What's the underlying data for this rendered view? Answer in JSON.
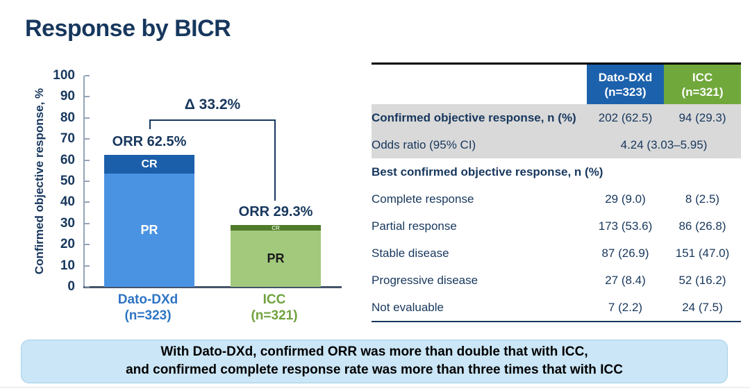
{
  "title": "Response by BICR",
  "chart_data": {
    "type": "bar",
    "stacked": true,
    "title": "",
    "xlabel": "",
    "ylabel": "Confirmed objective response, %",
    "ylim": [
      0,
      100
    ],
    "yticks": [
      0,
      10,
      20,
      30,
      40,
      50,
      60,
      70,
      80,
      90,
      100
    ],
    "grid": false,
    "legend_position": "none",
    "segment_labels": {
      "cr": "CR",
      "pr": "PR"
    },
    "delta_label": "Δ 33.2%",
    "categories": [
      {
        "name": "Dato-DXd",
        "sublabel": "(n=323)",
        "orr": 62.5,
        "orr_label": "ORR 62.5%",
        "cr": 9.0,
        "pr": 53.6,
        "cr_color": "#1B5FAA",
        "pr_color": "#4A93E3",
        "cr_text_color": "#FFFFFF",
        "pr_text_color": "#FFFFFF",
        "axis_label_color": "#2E74C4"
      },
      {
        "name": "ICC",
        "sublabel": "(n=321)",
        "orr": 29.3,
        "orr_label": "ORR 29.3%",
        "cr": 2.5,
        "pr": 26.8,
        "cr_color": "#4F7B2A",
        "pr_color": "#A2C97C",
        "cr_text_color": "#DCEBC8",
        "pr_text_color": "#1A1A1A",
        "axis_label_color": "#6FA23D"
      }
    ]
  },
  "table": {
    "columns": [
      {
        "name": "Dato-DXd",
        "sublabel": "(n=323)",
        "bg": "#1C61AC"
      },
      {
        "name": "ICC",
        "sublabel": "(n=321)",
        "bg": "#70A83C"
      }
    ],
    "rows": [
      {
        "label": "Confirmed objective response, n (%)",
        "bold": true,
        "gray": true,
        "values": [
          "202 (62.5)",
          "94 (29.3)"
        ]
      },
      {
        "label": "Odds ratio (95% CI)",
        "bold": false,
        "gray": true,
        "span_value": "4.24 (3.03–5.95)"
      },
      {
        "label": "Best confirmed objective response, n (%)",
        "bold": true,
        "section": true
      },
      {
        "label": "Complete response",
        "values": [
          "29 (9.0)",
          "8 (2.5)"
        ]
      },
      {
        "label": "Partial response",
        "values": [
          "173 (53.6)",
          "86 (26.8)"
        ]
      },
      {
        "label": "Stable disease",
        "values": [
          "87 (26.9)",
          "151 (47.0)"
        ]
      },
      {
        "label": "Progressive disease",
        "values": [
          "27 (8.4)",
          "52 (16.2)"
        ]
      },
      {
        "label": "Not evaluable",
        "values": [
          "7 (2.2)",
          "24 (7.5)"
        ]
      }
    ]
  },
  "banner": {
    "line1": "With Dato-DXd, confirmed ORR was more than double that with ICC,",
    "line2": "and confirmed complete response rate was more than three times that with ICC",
    "bg": "#CBE6F6",
    "border": "#A5CFE8"
  },
  "colors": {
    "navy": "#17375D",
    "axis_line": "#94A3B8",
    "baseline": "#44546A",
    "row_gray": "#D9D9D9"
  }
}
